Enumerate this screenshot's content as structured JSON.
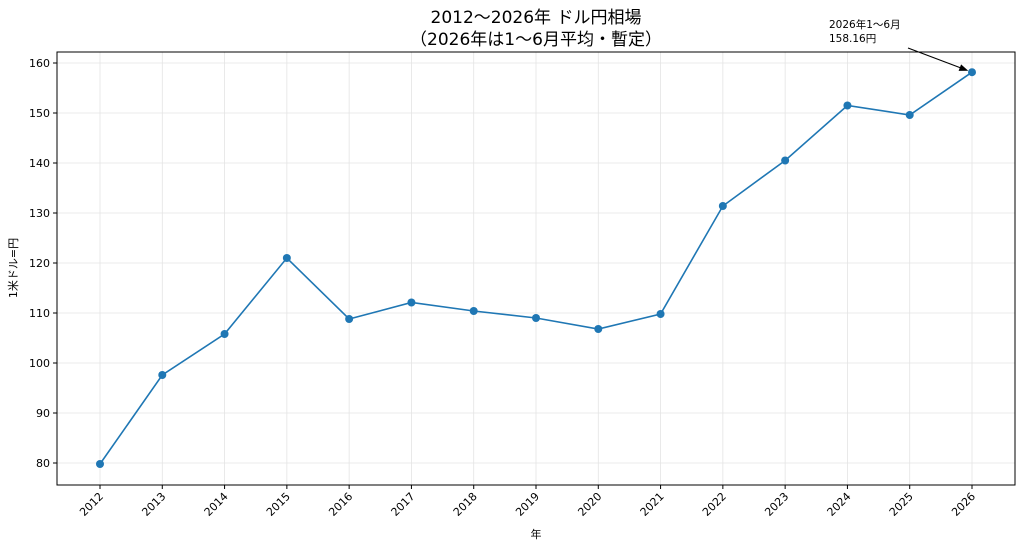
{
  "chart_data": {
    "type": "line",
    "title": "2012〜2026年 ドル円相場",
    "subtitle": "（2026年は1〜6月平均・暫定）",
    "xlabel": "年",
    "ylabel": "1米ドル=円",
    "categories": [
      "2012",
      "2013",
      "2014",
      "2015",
      "2016",
      "2017",
      "2018",
      "2019",
      "2020",
      "2021",
      "2022",
      "2023",
      "2024",
      "2025",
      "2026"
    ],
    "values": [
      79.8,
      97.6,
      105.8,
      121.0,
      108.8,
      112.1,
      110.4,
      109.0,
      106.8,
      109.8,
      131.4,
      140.5,
      151.5,
      149.6,
      158.16
    ],
    "yticks": [
      80,
      90,
      100,
      110,
      120,
      130,
      140,
      150,
      160
    ],
    "ylim": [
      75.6,
      162.2
    ],
    "grid": true,
    "color": "#1f77b4",
    "annotation": {
      "line1": "2026年1〜6月",
      "line2": "158.16円"
    }
  }
}
